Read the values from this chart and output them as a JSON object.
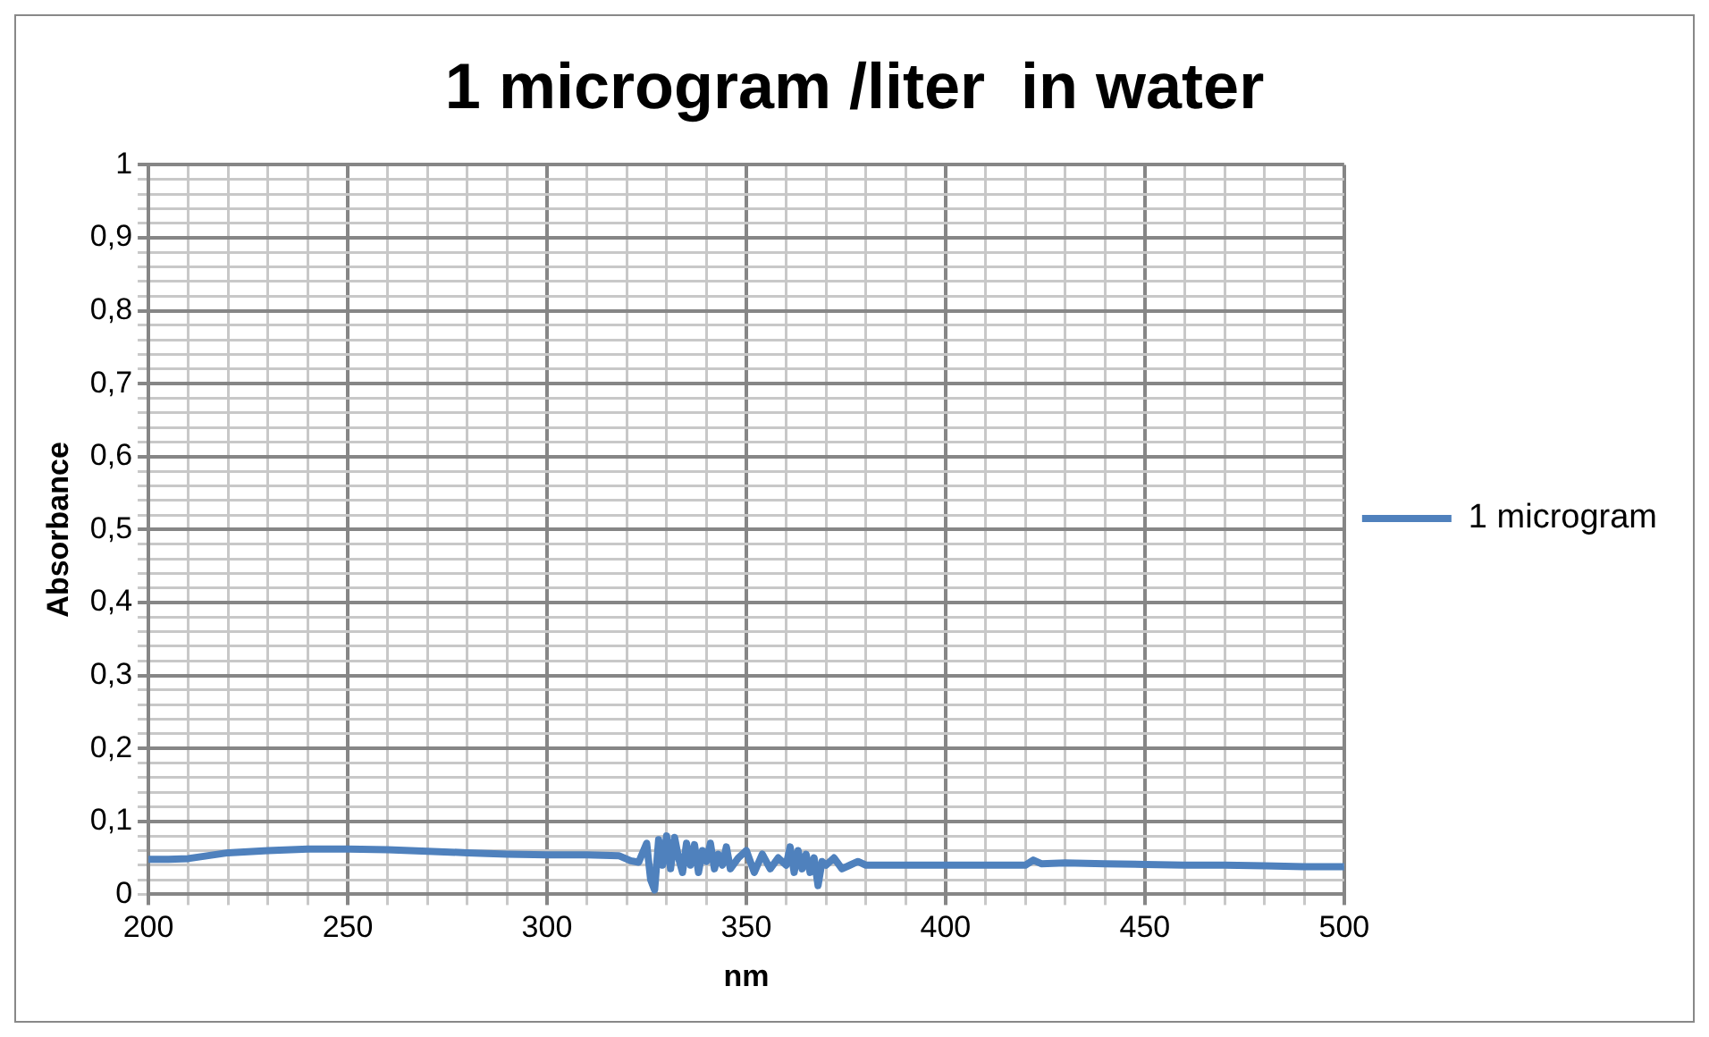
{
  "chart_data": {
    "type": "line",
    "title": "1 microgram /liter  in water",
    "xlabel": "nm",
    "ylabel": "Absorbance",
    "series": [
      {
        "name": "1 microgram",
        "color": "#4f81bd",
        "x": [
          200,
          205,
          210,
          215,
          220,
          230,
          240,
          250,
          260,
          270,
          280,
          290,
          300,
          310,
          318,
          321,
          323,
          325,
          326,
          327,
          328,
          329,
          330,
          331,
          332,
          333,
          334,
          335,
          336,
          337,
          338,
          339,
          340,
          341,
          342,
          343,
          344,
          345,
          346,
          348,
          350,
          352,
          354,
          356,
          358,
          360,
          361,
          362,
          363,
          364,
          365,
          366,
          367,
          368,
          369,
          370,
          372,
          374,
          376,
          378,
          380,
          390,
          400,
          410,
          420,
          422,
          424,
          430,
          440,
          450,
          460,
          470,
          480,
          490,
          500
        ],
        "values": [
          0.048,
          0.048,
          0.049,
          0.053,
          0.057,
          0.06,
          0.062,
          0.062,
          0.061,
          0.059,
          0.057,
          0.055,
          0.054,
          0.054,
          0.053,
          0.046,
          0.044,
          0.07,
          0.02,
          0.006,
          0.075,
          0.04,
          0.08,
          0.035,
          0.078,
          0.05,
          0.03,
          0.07,
          0.04,
          0.068,
          0.03,
          0.06,
          0.045,
          0.07,
          0.035,
          0.055,
          0.04,
          0.065,
          0.035,
          0.05,
          0.06,
          0.03,
          0.055,
          0.035,
          0.05,
          0.04,
          0.065,
          0.03,
          0.06,
          0.035,
          0.055,
          0.03,
          0.05,
          0.012,
          0.045,
          0.04,
          0.05,
          0.035,
          0.04,
          0.045,
          0.04,
          0.04,
          0.04,
          0.04,
          0.04,
          0.047,
          0.042,
          0.043,
          0.042,
          0.041,
          0.04,
          0.04,
          0.039,
          0.038,
          0.038
        ]
      }
    ],
    "xlim": [
      200,
      500
    ],
    "xticks": [
      200,
      {
        "value": 210,
        "label": null
      },
      {
        "value": 220,
        "label": null
      },
      {
        "value": 230,
        "label": null
      },
      {
        "value": 240,
        "label": null
      },
      250,
      {
        "value": 260,
        "label": null
      },
      {
        "value": 270,
        "label": null
      },
      {
        "value": 280,
        "label": null
      },
      {
        "value": 290,
        "label": null
      },
      300,
      {
        "value": 310,
        "label": null
      },
      {
        "value": 320,
        "label": null
      },
      {
        "value": 330,
        "label": null
      },
      {
        "value": 340,
        "label": null
      },
      350,
      {
        "value": 360,
        "label": null
      },
      {
        "value": 370,
        "label": null
      },
      {
        "value": 380,
        "label": null
      },
      {
        "value": 390,
        "label": null
      },
      400,
      {
        "value": 410,
        "label": null
      },
      {
        "value": 420,
        "label": null
      },
      {
        "value": 430,
        "label": null
      },
      {
        "value": 440,
        "label": null
      },
      450,
      {
        "value": 460,
        "label": null
      },
      {
        "value": 470,
        "label": null
      },
      {
        "value": 480,
        "label": null
      },
      {
        "value": 490,
        "label": null
      },
      500
    ],
    "ylim": [
      0,
      1
    ],
    "yticks": [
      0,
      {
        "value": 0.02,
        "label": null
      },
      {
        "value": 0.04,
        "label": null
      },
      {
        "value": 0.06,
        "label": null
      },
      {
        "value": 0.08,
        "label": null
      },
      {
        "value": 0.1,
        "label": "0,1"
      },
      {
        "value": 0.12,
        "label": null
      },
      {
        "value": 0.14,
        "label": null
      },
      {
        "value": 0.16,
        "label": null
      },
      {
        "value": 0.18,
        "label": null
      },
      {
        "value": 0.2,
        "label": "0,2"
      },
      {
        "value": 0.22,
        "label": null
      },
      {
        "value": 0.24,
        "label": null
      },
      {
        "value": 0.26,
        "label": null
      },
      {
        "value": 0.28,
        "label": null
      },
      {
        "value": 0.3,
        "label": "0,3"
      },
      {
        "value": 0.32,
        "label": null
      },
      {
        "value": 0.34,
        "label": null
      },
      {
        "value": 0.36,
        "label": null
      },
      {
        "value": 0.38,
        "label": null
      },
      {
        "value": 0.4,
        "label": "0,4"
      },
      {
        "value": 0.42,
        "label": null
      },
      {
        "value": 0.44,
        "label": null
      },
      {
        "value": 0.46,
        "label": null
      },
      {
        "value": 0.48,
        "label": null
      },
      {
        "value": 0.5,
        "label": "0,5"
      },
      {
        "value": 0.52,
        "label": null
      },
      {
        "value": 0.54,
        "label": null
      },
      {
        "value": 0.56,
        "label": null
      },
      {
        "value": 0.58,
        "label": null
      },
      {
        "value": 0.6,
        "label": "0,6"
      },
      {
        "value": 0.62,
        "label": null
      },
      {
        "value": 0.64,
        "label": null
      },
      {
        "value": 0.66,
        "label": null
      },
      {
        "value": 0.68,
        "label": null
      },
      {
        "value": 0.7,
        "label": "0,7"
      },
      {
        "value": 0.72,
        "label": null
      },
      {
        "value": 0.74,
        "label": null
      },
      {
        "value": 0.76,
        "label": null
      },
      {
        "value": 0.78,
        "label": null
      },
      {
        "value": 0.8,
        "label": "0,8"
      },
      {
        "value": 0.82,
        "label": null
      },
      {
        "value": 0.84,
        "label": null
      },
      {
        "value": 0.86,
        "label": null
      },
      {
        "value": 0.88,
        "label": null
      },
      {
        "value": 0.9,
        "label": "0,9"
      },
      {
        "value": 0.92,
        "label": null
      },
      {
        "value": 0.94,
        "label": null
      },
      {
        "value": 0.96,
        "label": null
      },
      {
        "value": 0.98,
        "label": null
      },
      1
    ],
    "grid": true,
    "legend": "right",
    "marker": "none",
    "line_style": "solid"
  }
}
